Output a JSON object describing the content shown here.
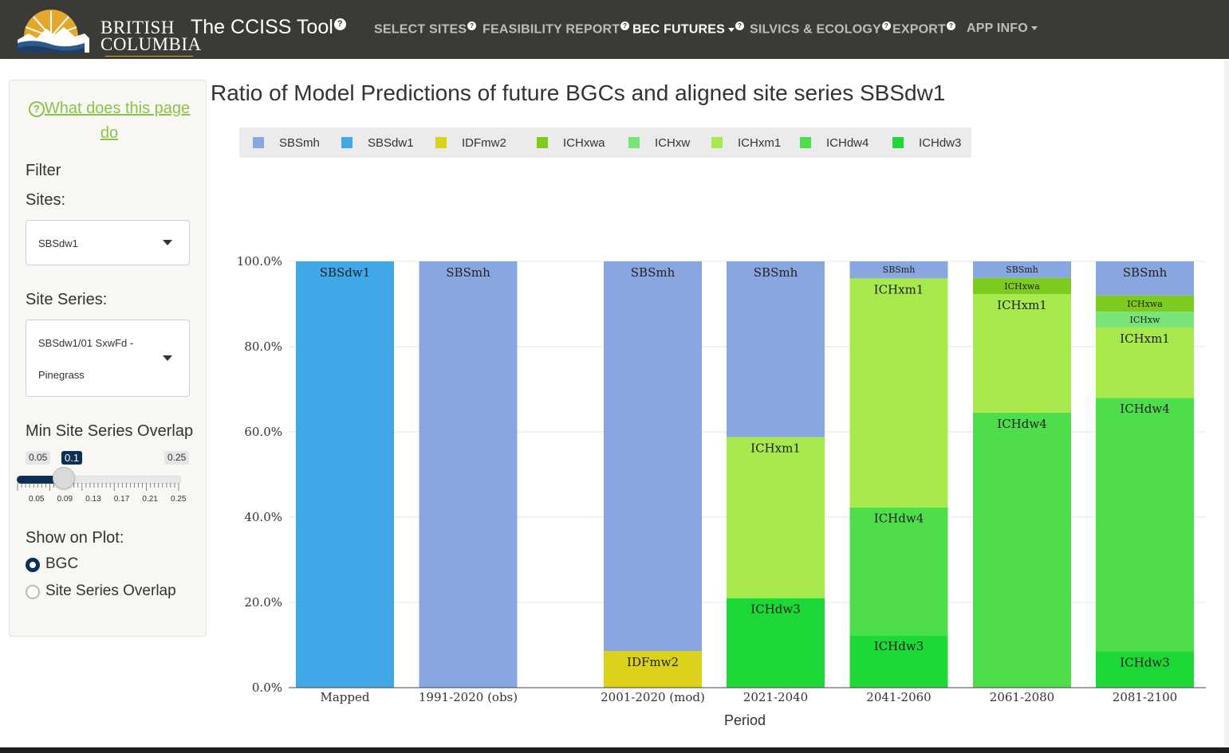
{
  "navbar": {
    "logo_line1": "BRITISH",
    "logo_line2": "COLUMBIA",
    "app_title": "The CCISS Tool",
    "help_glyph": "?",
    "items": [
      {
        "label": "SELECT SITES",
        "help": true,
        "dropdown": false,
        "active": false
      },
      {
        "label": "FEASIBILITY REPORT",
        "help": true,
        "dropdown": false,
        "active": false
      },
      {
        "label": "BEC FUTURES",
        "help": true,
        "dropdown": true,
        "active": true
      },
      {
        "label": "SILVICS & ECOLOGY",
        "help": true,
        "dropdown": false,
        "active": false
      },
      {
        "label": "EXPORT",
        "help": true,
        "dropdown": false,
        "active": false
      },
      {
        "label": "APP INFO",
        "help": false,
        "dropdown": true,
        "active": false
      }
    ]
  },
  "sidebar": {
    "help_link": "What does this page do",
    "help_icon": "?",
    "filter_label": "Filter",
    "sites_label": "Sites:",
    "sites_value": "SBSdw1",
    "site_series_label": "Site Series:",
    "site_series_value_line1": "SBSdw1/01 SxwFd -",
    "site_series_value_line2": "Pinegrass",
    "overlap_label": "Min Site Series Overlap",
    "slider": {
      "min_label": "0.05",
      "max_label": "0.25",
      "value_label": "0.1",
      "min": 0.05,
      "max": 0.25,
      "value": 0.1,
      "tick_labels": [
        "0.05",
        "0.09",
        "0.13",
        "0.17",
        "0.21",
        "0.25"
      ]
    },
    "show_label": "Show on Plot:",
    "radio_options": [
      {
        "label": "BGC",
        "checked": true
      },
      {
        "label": "Site Series Overlap",
        "checked": false
      }
    ]
  },
  "chart_data": {
    "type": "bar",
    "stacked": true,
    "title": "Ratio of Model Predictions of future BGCs and aligned site series SBSdw1",
    "xlabel": "Period",
    "ylabel": "",
    "ylim": [
      0,
      100
    ],
    "y_tick_labels": [
      "0.0%",
      "20.0%",
      "40.0%",
      "60.0%",
      "80.0%",
      "100.0%"
    ],
    "y_ticks": [
      0,
      20,
      40,
      60,
      80,
      100
    ],
    "categories": [
      "Mapped",
      "1991-2020 (obs)",
      "2001-2020 (mod)",
      "2021-2040",
      "2041-2060",
      "2061-2080",
      "2081-2100"
    ],
    "legend_position": "top",
    "grid": true,
    "series": [
      {
        "name": "ICHdw3",
        "color": "#1ed837",
        "values": [
          0,
          0,
          0,
          21,
          12.3,
          0,
          8.5
        ]
      },
      {
        "name": "ICHdw4",
        "color": "#4ede4c",
        "values": [
          0,
          0,
          0,
          0,
          30,
          64.5,
          59.5
        ]
      },
      {
        "name": "ICHxm1",
        "color": "#a8ea4e",
        "values": [
          0,
          0,
          0,
          37.8,
          53.7,
          27.8,
          16.5
        ]
      },
      {
        "name": "ICHxw",
        "color": "#78e478",
        "values": [
          0,
          0,
          0,
          0,
          0,
          0,
          3.7
        ]
      },
      {
        "name": "ICHxwa",
        "color": "#7ecb20",
        "values": [
          0,
          0,
          0,
          0,
          0,
          3.8,
          3.8
        ]
      },
      {
        "name": "IDFmw2",
        "color": "#ddd21a",
        "values": [
          0,
          0,
          8.6,
          0,
          0,
          0,
          0
        ]
      },
      {
        "name": "SBSdw1",
        "color": "#41a8e8",
        "values": [
          100,
          0,
          0,
          0,
          0,
          0,
          0
        ]
      },
      {
        "name": "SBSmh",
        "color": "#88a6e0",
        "values": [
          0,
          100,
          91.4,
          41.2,
          4,
          3.9,
          8
        ]
      }
    ],
    "legend_order": [
      "SBSmh",
      "SBSdw1",
      "IDFmw2",
      "ICHxwa",
      "ICHxw",
      "ICHxm1",
      "ICHdw4",
      "ICHdw3"
    ]
  }
}
